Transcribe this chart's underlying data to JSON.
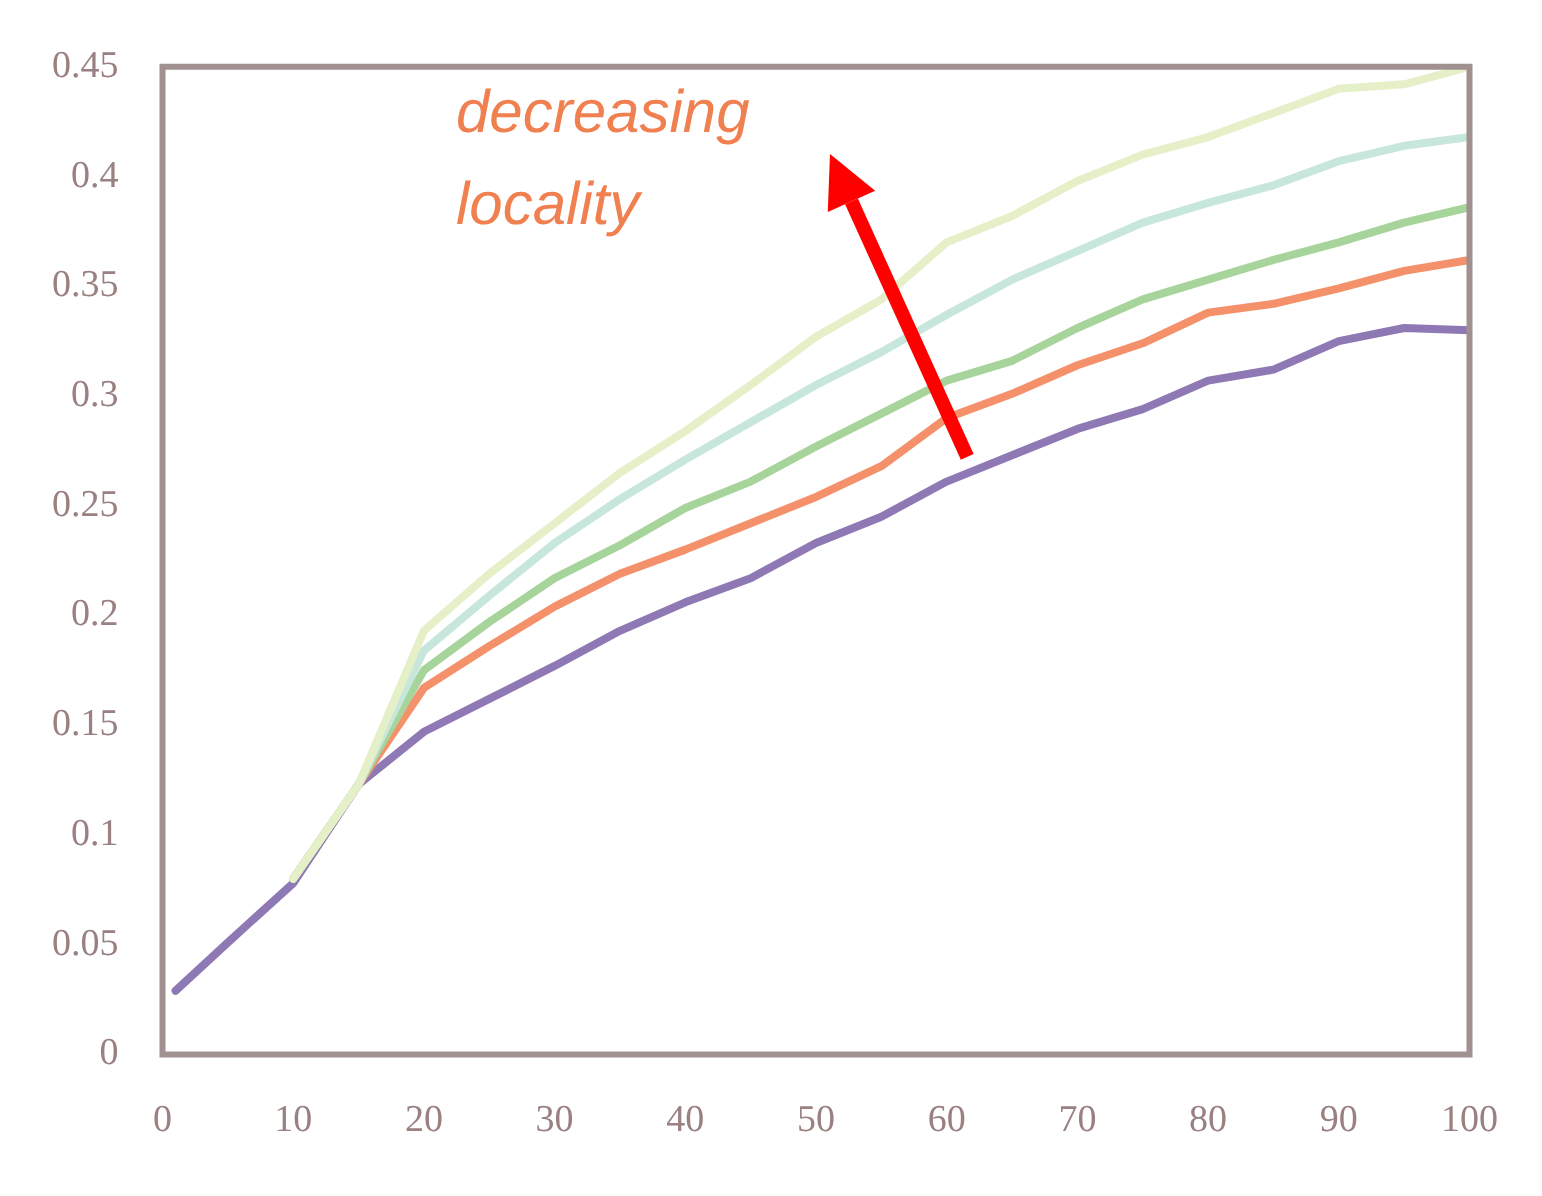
{
  "chart_data": {
    "type": "line",
    "x": [
      1,
      5,
      10,
      15,
      20,
      25,
      30,
      35,
      40,
      45,
      50,
      55,
      60,
      65,
      70,
      75,
      80,
      85,
      90,
      95,
      100
    ],
    "series": [
      {
        "color": "#e6f0c8",
        "values": [
          null,
          null,
          0.08,
          0.123,
          0.193,
          0.219,
          0.242,
          0.265,
          0.284,
          0.305,
          0.327,
          0.344,
          0.37,
          0.382,
          0.398,
          0.41,
          0.418,
          0.429,
          0.44,
          0.442,
          0.45
        ]
      },
      {
        "color": "#c7e6dc",
        "values": [
          null,
          null,
          0.08,
          0.123,
          0.184,
          0.209,
          0.233,
          0.253,
          0.271,
          0.288,
          0.305,
          0.32,
          0.337,
          0.353,
          0.366,
          0.379,
          0.388,
          0.396,
          0.407,
          0.414,
          0.418
        ]
      },
      {
        "color": "#a6d49a",
        "values": [
          null,
          null,
          0.08,
          0.123,
          0.175,
          0.197,
          0.217,
          0.232,
          0.249,
          0.261,
          0.277,
          0.292,
          0.307,
          0.316,
          0.331,
          0.344,
          0.353,
          0.362,
          0.37,
          0.379,
          0.386
        ]
      },
      {
        "color": "#f4916a",
        "values": [
          null,
          null,
          0.08,
          0.123,
          0.167,
          0.186,
          0.204,
          0.219,
          0.23,
          0.242,
          0.254,
          0.268,
          0.29,
          0.301,
          0.314,
          0.324,
          0.338,
          0.342,
          0.349,
          0.357,
          0.362
        ]
      },
      {
        "color": "#8e79b5",
        "values": [
          0.029,
          0.051,
          0.078,
          0.123,
          0.147,
          0.162,
          0.177,
          0.193,
          0.206,
          0.217,
          0.233,
          0.245,
          0.261,
          0.273,
          0.285,
          0.294,
          0.307,
          0.312,
          0.325,
          0.331,
          0.33
        ]
      }
    ],
    "xlim": [
      0,
      100
    ],
    "xticks": [
      0,
      10,
      20,
      30,
      40,
      50,
      60,
      70,
      80,
      90,
      100
    ],
    "ylim": [
      0,
      0.45
    ],
    "yticks": [
      0,
      0.05,
      0.1,
      0.15,
      0.2,
      0.25,
      0.3,
      0.35,
      0.4,
      0.45
    ],
    "annotations": [
      "decreasing locality"
    ],
    "grid": false,
    "legend": false,
    "marker": "none",
    "line_style": "solid"
  }
}
